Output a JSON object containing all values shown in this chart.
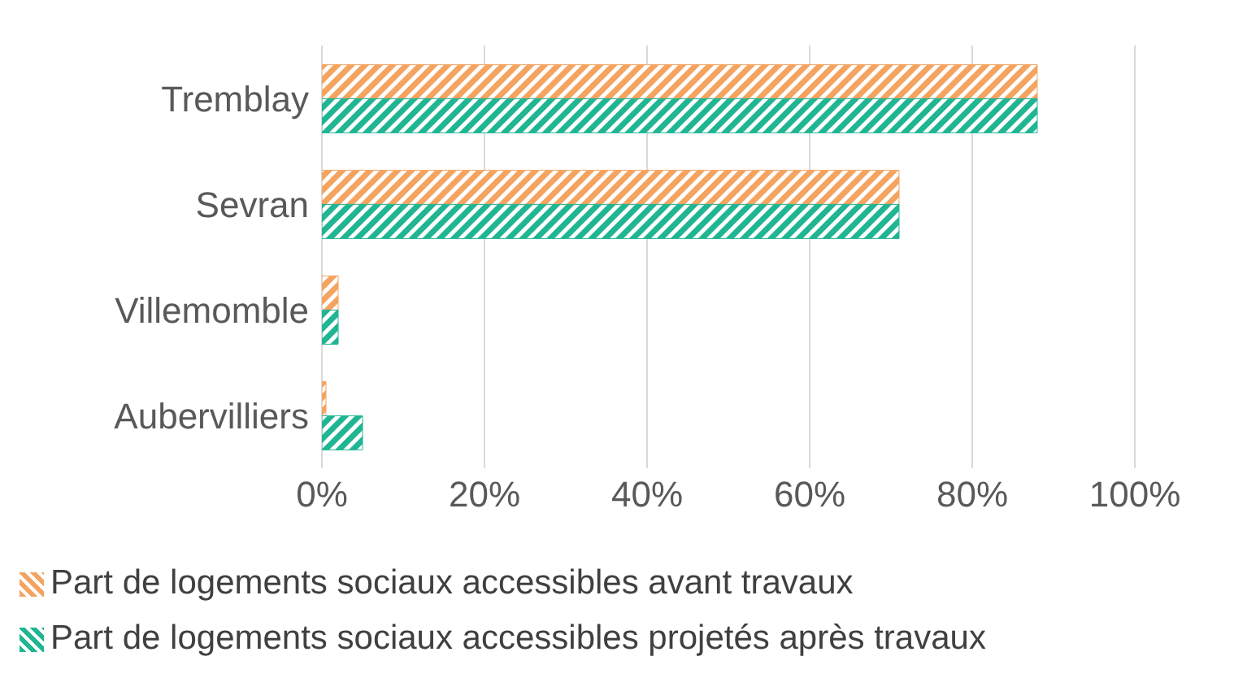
{
  "chart_data": {
    "type": "bar",
    "orientation": "horizontal",
    "categories": [
      "Tremblay",
      "Sevran",
      "Villemomble",
      "Aubervilliers"
    ],
    "series": [
      {
        "name": "Part de logements sociaux accessibles avant travaux",
        "color": "#f4a460",
        "values": [
          88,
          71,
          2,
          0.5
        ]
      },
      {
        "name": "Part de logements sociaux accessibles projetés après travaux",
        "color": "#20b593",
        "values": [
          88,
          71,
          2,
          5
        ]
      }
    ],
    "xlim": [
      0,
      100
    ],
    "xticks": [
      {
        "value": 0,
        "label": "0%"
      },
      {
        "value": 20,
        "label": "20%"
      },
      {
        "value": 40,
        "label": "40%"
      },
      {
        "value": 60,
        "label": "60%"
      },
      {
        "value": 80,
        "label": "80%"
      },
      {
        "value": 100,
        "label": "100%"
      }
    ],
    "grid": "x",
    "legend": "bottom"
  }
}
